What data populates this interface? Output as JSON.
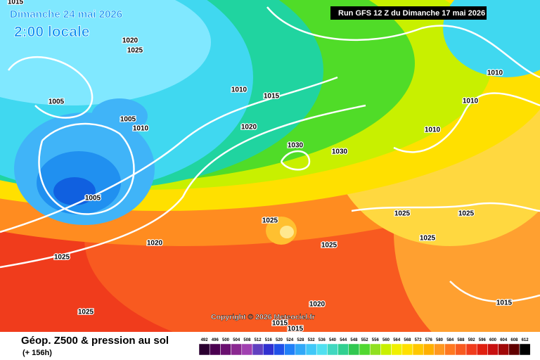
{
  "header": {
    "date": "Dimanche 24 mai 2026",
    "time": "2:00 locale",
    "run": "Run GFS 12 Z du Dimanche 17 mai 2026"
  },
  "copyright": "Copyright © 2026 Meteociel.fr",
  "footer": {
    "title": "Géop. Z500 & pression au sol",
    "lead": "(+ 156h)"
  },
  "legend": {
    "levels": [
      492,
      496,
      500,
      504,
      508,
      512,
      516,
      520,
      524,
      528,
      532,
      536,
      540,
      544,
      548,
      552,
      556,
      560,
      564,
      568,
      572,
      576,
      580,
      584,
      588,
      592,
      596,
      600,
      604,
      608,
      612
    ]
  },
  "isobars": [
    1015,
    1020,
    1025,
    1005,
    1005,
    1010,
    1005,
    1010,
    1015,
    1020,
    1030,
    1030,
    1010,
    1010,
    1010,
    1025,
    1025,
    1025,
    1025,
    1025,
    1020,
    1025,
    1025,
    1020,
    1015,
    1015,
    1015
  ]
}
